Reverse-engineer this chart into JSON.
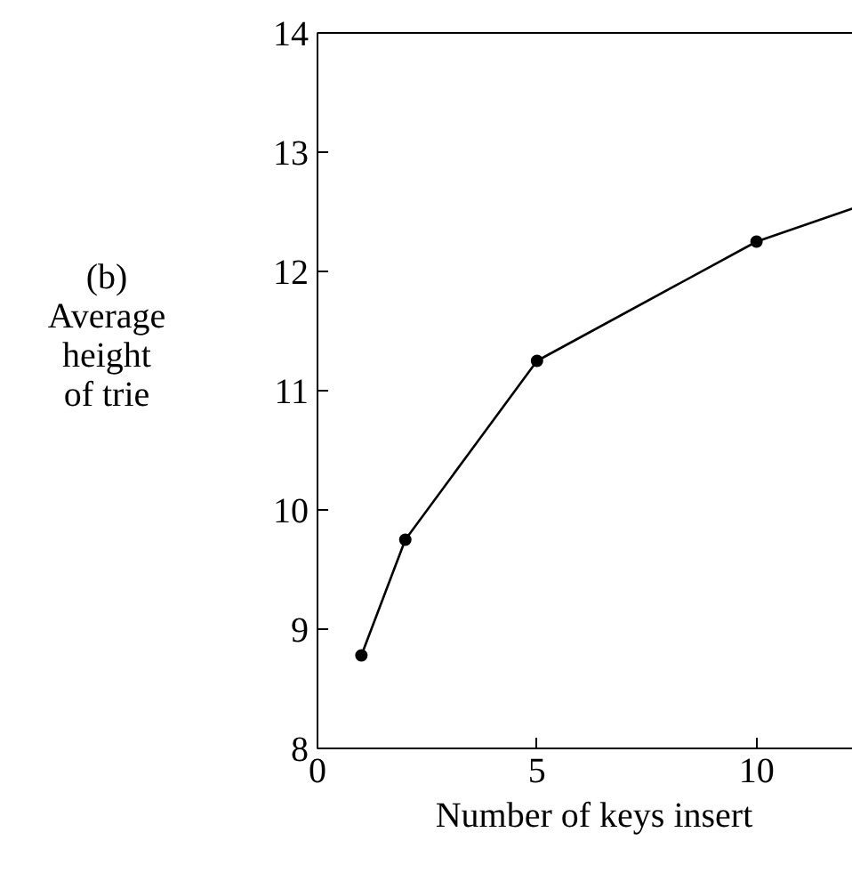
{
  "chart_data": {
    "type": "line",
    "ylabel": "(b)\nAverage\nheight\nof trie",
    "xlabel": "Number of keys insert",
    "series": [
      {
        "x": [
          1,
          2,
          5,
          10
        ],
        "values": [
          8.78,
          9.75,
          11.25,
          12.25
        ],
        "color": "#000000",
        "marker": "circle"
      },
      {
        "x": [
          10,
          12.6
        ],
        "values": [
          12.25,
          12.58
        ],
        "color": "#000000",
        "marker": "none"
      }
    ],
    "xlim": [
      0,
      12.6
    ],
    "ylim": [
      8,
      14
    ],
    "xticks": [
      0,
      5,
      10
    ],
    "yticks": [
      8,
      9,
      10,
      11,
      12,
      13,
      14
    ],
    "grid": false,
    "line_style": "solid"
  }
}
